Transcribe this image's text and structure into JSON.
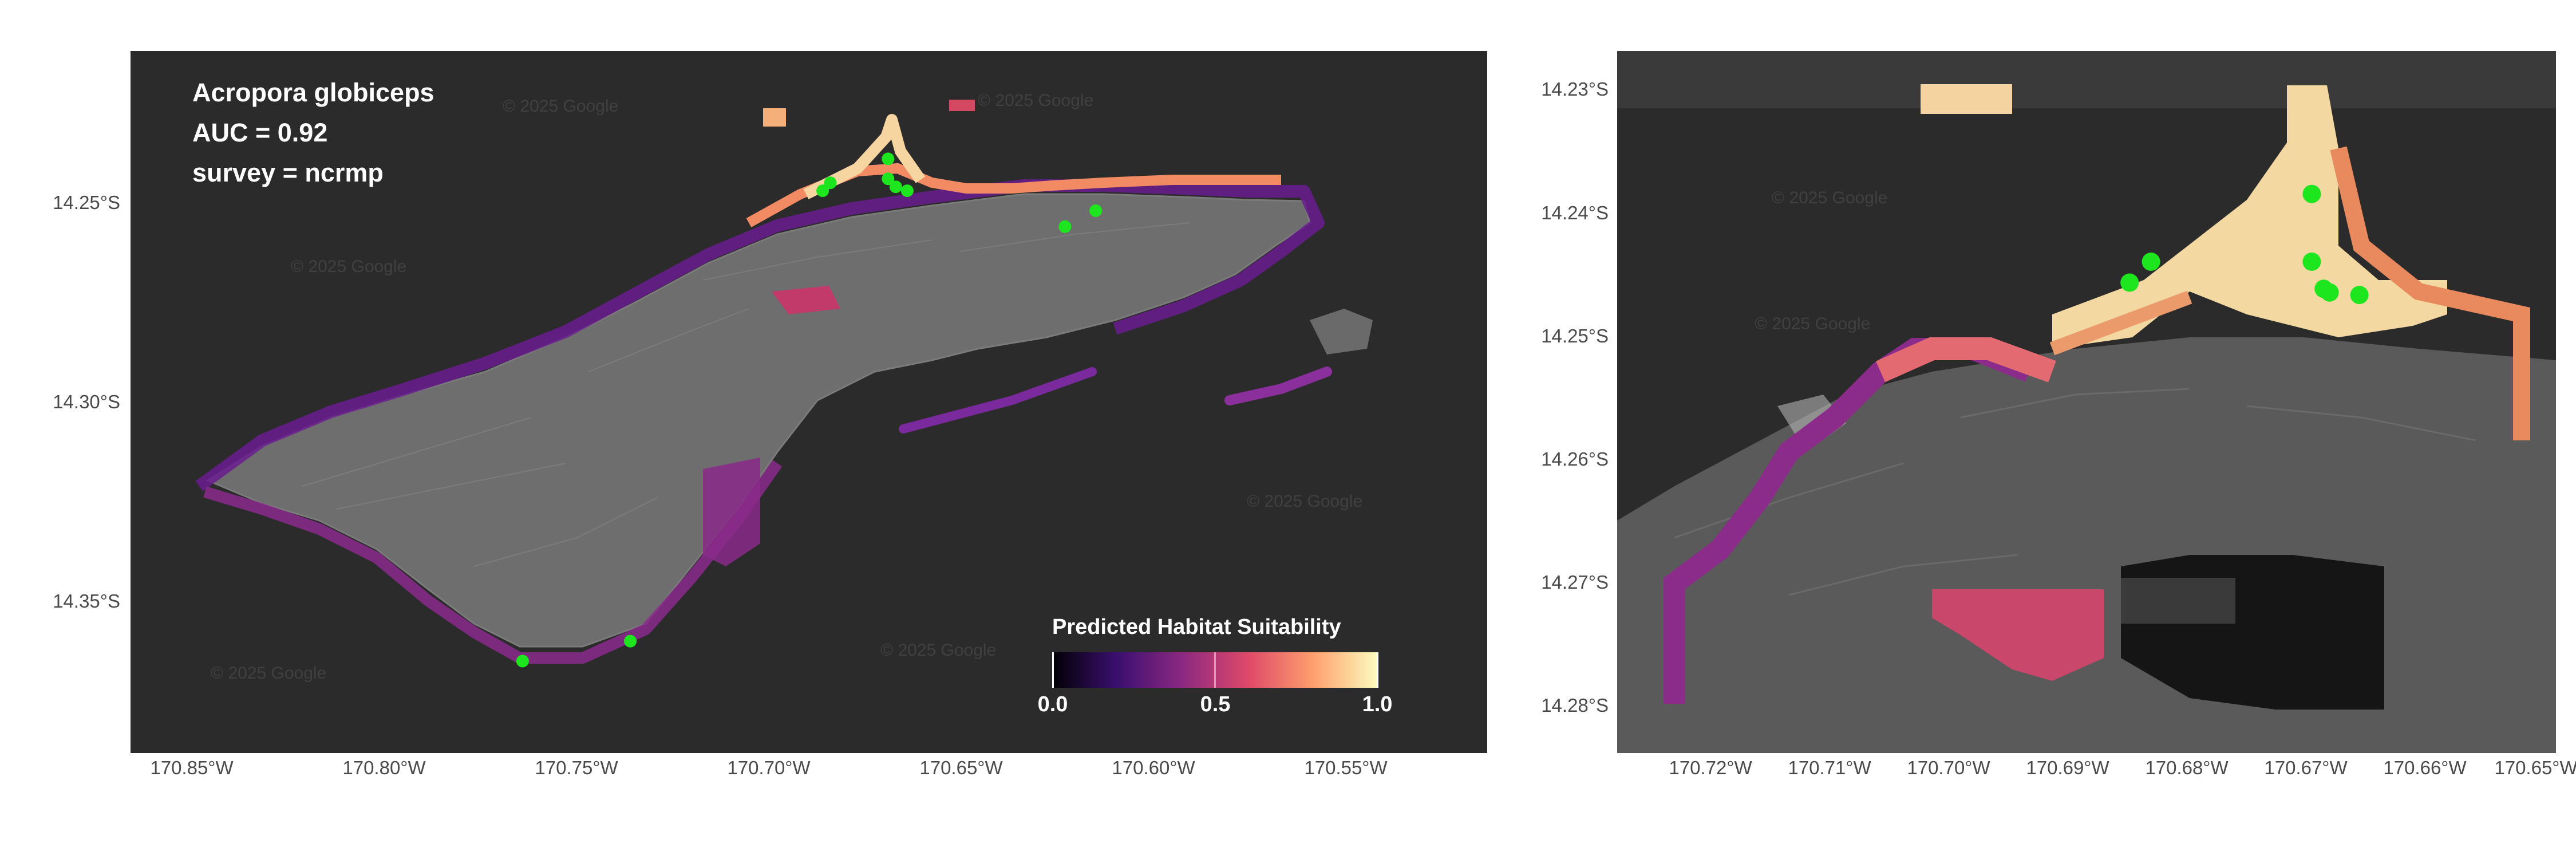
{
  "title": {
    "species": "Acropora globiceps",
    "auc": "AUC = 0.92",
    "survey": "survey = ncrmp"
  },
  "legend": {
    "title": "Predicted Habitat Suitability",
    "labels": [
      "0.0",
      "0.5",
      "1.0"
    ],
    "colors": [
      "#000004",
      "#3b0f70",
      "#8c2981",
      "#de4968",
      "#fe9f6d",
      "#fcfdbf"
    ]
  },
  "watermark": "© 2025 Google",
  "left_map": {
    "x_ticks": [
      "170.85°W",
      "170.80°W",
      "170.75°W",
      "170.70°W",
      "170.65°W",
      "170.60°W",
      "170.55°W"
    ],
    "y_ticks": [
      "14.25°S",
      "14.30°S",
      "14.35°S"
    ],
    "survey_points": [
      {
        "lon": -170.686,
        "lat": -14.247
      },
      {
        "lon": -170.684,
        "lat": -14.245
      },
      {
        "lon": -170.669,
        "lat": -14.239
      },
      {
        "lon": -170.669,
        "lat": -14.244
      },
      {
        "lon": -170.667,
        "lat": -14.246
      },
      {
        "lon": -170.664,
        "lat": -14.247
      },
      {
        "lon": -170.623,
        "lat": -14.256
      },
      {
        "lon": -170.615,
        "lat": -14.252
      },
      {
        "lon": -170.764,
        "lat": -14.365
      },
      {
        "lon": -170.736,
        "lat": -14.36
      }
    ]
  },
  "right_map": {
    "x_ticks": [
      "170.72°W",
      "170.71°W",
      "170.70°W",
      "170.69°W",
      "170.68°W",
      "170.67°W",
      "170.66°W",
      "170.65°W"
    ],
    "y_ticks": [
      "14.23°S",
      "14.24°S",
      "14.25°S",
      "14.26°S",
      "14.27°S",
      "14.28°S"
    ],
    "survey_points": [
      {
        "lon": -170.6695,
        "lat": -14.2385
      },
      {
        "lon": -170.6695,
        "lat": -14.244
      },
      {
        "lon": -170.683,
        "lat": -14.244
      },
      {
        "lon": -170.6848,
        "lat": -14.2457
      },
      {
        "lon": -170.6685,
        "lat": -14.2462
      },
      {
        "lon": -170.668,
        "lat": -14.2465
      },
      {
        "lon": -170.6655,
        "lat": -14.2467
      }
    ]
  }
}
